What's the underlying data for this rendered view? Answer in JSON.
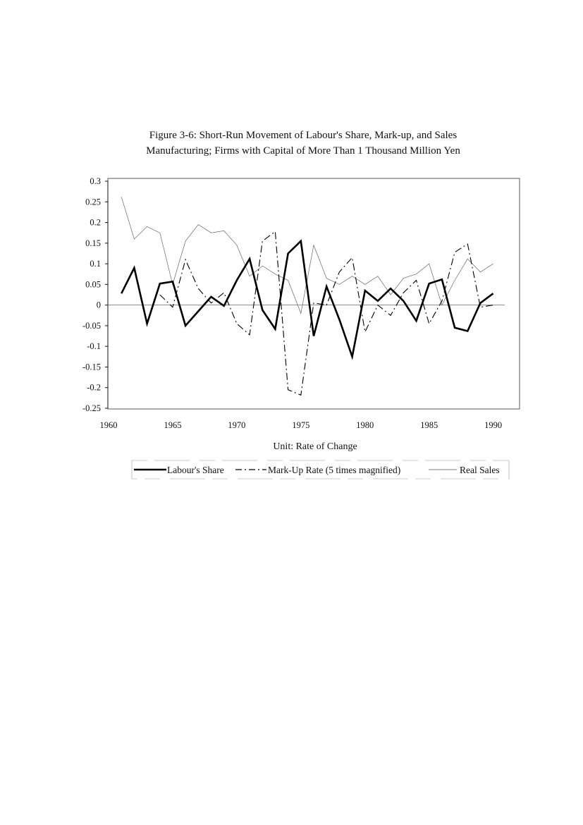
{
  "chart_data": {
    "type": "line",
    "title": "Figure 3-6: Short-Run Movement of Labour's Share, Mark-up, and Sales",
    "subtitle": "Manufacturing; Firms with Capital of More Than 1 Thousand Million Yen",
    "xlabel": "Unit: Rate of Change",
    "ylabel": "",
    "xlim": [
      1960,
      1992
    ],
    "ylim": [
      -0.25,
      0.3
    ],
    "yticks": [
      "0.3",
      "0.25",
      "0.2",
      "0.15",
      "0.1",
      "0.05",
      "0",
      "-0.05",
      "-0.1",
      "-0.15",
      "-0.2",
      "-0.25"
    ],
    "xticks": [
      "1960",
      "1965",
      "1970",
      "1975",
      "1980",
      "1985",
      "1990"
    ],
    "grid": false,
    "legend_position": "bottom",
    "x": [
      1961,
      1962,
      1963,
      1964,
      1965,
      1966,
      1967,
      1968,
      1969,
      1970,
      1971,
      1972,
      1973,
      1974,
      1975,
      1976,
      1977,
      1978,
      1979,
      1980,
      1981,
      1982,
      1983,
      1984,
      1985,
      1986,
      1987,
      1988,
      1989,
      1990
    ],
    "series": [
      {
        "name": "Labour's Share",
        "style": "solid-thick",
        "values": [
          0.028,
          0.09,
          -0.045,
          0.052,
          0.057,
          -0.05,
          -0.015,
          0.02,
          -0.002,
          0.06,
          0.112,
          -0.012,
          -0.058,
          0.125,
          0.155,
          -0.075,
          0.045,
          -0.035,
          -0.125,
          0.035,
          0.01,
          0.04,
          0.01,
          -0.038,
          0.052,
          0.062,
          -0.055,
          -0.063,
          0.005,
          0.028
        ]
      },
      {
        "name": "Mark-Up Rate (5 times magnified)",
        "style": "dash-dot",
        "values": [
          null,
          null,
          null,
          0.025,
          -0.005,
          0.11,
          0.04,
          0.005,
          0.03,
          -0.045,
          -0.072,
          0.155,
          0.178,
          -0.205,
          -0.218,
          0.005,
          0.0,
          0.08,
          0.115,
          -0.065,
          0.0,
          -0.025,
          0.03,
          0.06,
          -0.045,
          0.01,
          0.128,
          0.148,
          -0.005,
          0.0
        ]
      },
      {
        "name": "Real Sales",
        "style": "thin",
        "values": [
          0.262,
          0.16,
          0.19,
          0.175,
          0.05,
          0.155,
          0.195,
          0.175,
          0.18,
          0.145,
          0.07,
          0.095,
          0.075,
          0.06,
          -0.02,
          0.145,
          0.065,
          0.05,
          0.07,
          0.05,
          0.07,
          0.025,
          0.065,
          0.075,
          0.1,
          0.0,
          0.06,
          0.112,
          0.08,
          0.1
        ]
      }
    ]
  }
}
